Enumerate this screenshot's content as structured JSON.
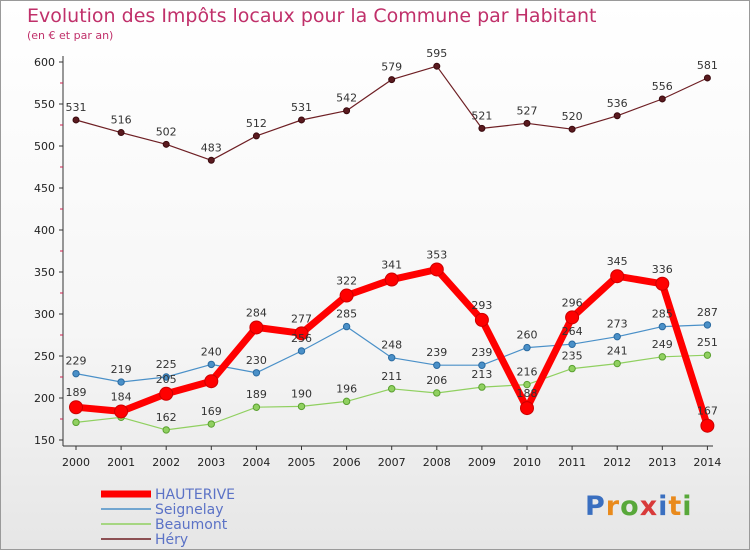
{
  "chart_data": {
    "type": "line",
    "title": "Evolution des Impôts locaux pour la Commune par Habitant",
    "subtitle": "(en € et par an)",
    "x": [
      2000,
      2001,
      2002,
      2003,
      2004,
      2005,
      2006,
      2007,
      2008,
      2009,
      2010,
      2011,
      2012,
      2013,
      2014
    ],
    "ylim": [
      150,
      600
    ],
    "yticks": [
      150,
      200,
      250,
      300,
      350,
      400,
      450,
      500,
      550,
      600
    ],
    "series": [
      {
        "name": "Héry",
        "color": "#6e1f24",
        "values": [
          531,
          516,
          502,
          483,
          512,
          531,
          542,
          579,
          595,
          521,
          527,
          520,
          536,
          556,
          581
        ]
      },
      {
        "name": "Seignelay",
        "color": "#4a90c8",
        "values": [
          229,
          219,
          225,
          240,
          230,
          256,
          285,
          248,
          239,
          239,
          260,
          264,
          273,
          285,
          287
        ]
      },
      {
        "name": "Beaumont",
        "color": "#90d060",
        "values": [
          171,
          177,
          162,
          169,
          189,
          190,
          196,
          211,
          206,
          213,
          216,
          235,
          241,
          249,
          251
        ]
      },
      {
        "name": "HAUTERIVE",
        "color": "#ff0000",
        "values": [
          189,
          184,
          205,
          220,
          284,
          277,
          322,
          341,
          353,
          293,
          188,
          296,
          345,
          336,
          167
        ]
      }
    ],
    "point_labels": {
      "Héry": [
        "531",
        "516",
        "502",
        "483",
        "512",
        "531",
        "542",
        "579",
        "595",
        "521",
        "527",
        "520",
        "536",
        "556",
        "581"
      ],
      "Seignelay": [
        "229",
        "219",
        "225",
        "240",
        "230",
        "256",
        "285",
        "248",
        "239",
        "239",
        "260",
        "264",
        "273",
        "285",
        "287"
      ],
      "Beaumont": [
        "",
        "",
        "162",
        "169",
        "189",
        "190",
        "196",
        "211",
        "206",
        "213",
        "216",
        "235",
        "241",
        "249",
        "251"
      ],
      "HAUTERIVE": [
        "189",
        "184",
        "205",
        "",
        "284",
        "277",
        "322",
        "341",
        "353",
        "293",
        "188",
        "296",
        "345",
        "336",
        "167"
      ]
    },
    "legend": [
      "HAUTERIVE",
      "Seignelay",
      "Beaumont",
      "Héry"
    ],
    "legend_position": "bottom-left",
    "grid": false
  },
  "logo": {
    "parts": [
      "P",
      "r",
      "o",
      "x",
      "i",
      "t",
      "i"
    ]
  }
}
